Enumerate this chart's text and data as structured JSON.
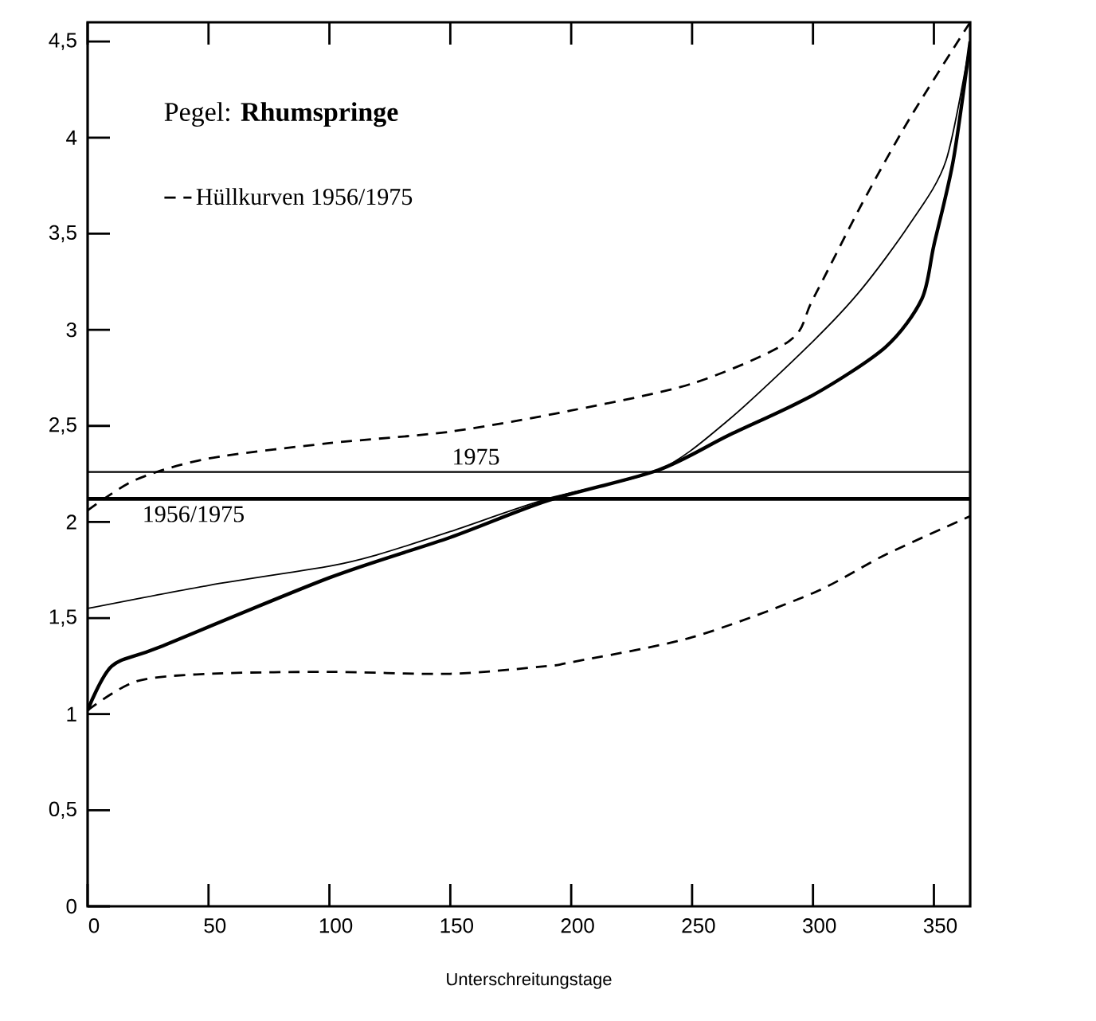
{
  "chart_data": {
    "type": "line",
    "title": "Pegel: **Rhumspringe**",
    "xlabel": "Unterschreitungstage",
    "xlim": [
      0,
      365
    ],
    "ylim": [
      0,
      4.6
    ],
    "xticks": [
      0,
      50,
      100,
      150,
      200,
      250,
      300,
      350
    ],
    "yticks": [
      0,
      {
        "value": 0.5,
        "label": "0,5"
      },
      1,
      {
        "value": 1.5,
        "label": "1,5"
      },
      2,
      {
        "value": 2.5,
        "label": "2,5"
      },
      3,
      {
        "value": 3.5,
        "label": "3,5"
      },
      4,
      {
        "value": 4.5,
        "label": "4,5"
      }
    ],
    "grid": false,
    "legend": "top left",
    "series": [
      {
        "name": "Hüllkurven 1956/1975",
        "color": "#000000",
        "line_style": "dashed",
        "x": [
          0,
          20,
          50,
          100,
          150,
          200,
          250,
          290,
          300,
          320,
          340,
          365
        ],
        "values": [
          2.06,
          2.22,
          2.33,
          2.41,
          2.47,
          2.58,
          2.72,
          2.94,
          3.16,
          3.65,
          4.1,
          4.6
        ]
      },
      {
        "color": "#000000",
        "line_style": "dashed",
        "x": [
          0,
          20,
          50,
          100,
          150,
          190,
          200,
          250,
          300,
          330,
          365
        ],
        "values": [
          1.02,
          1.17,
          1.21,
          1.22,
          1.21,
          1.25,
          1.27,
          1.4,
          1.63,
          1.83,
          2.03
        ]
      },
      {
        "color": "#000000",
        "line_style": "solid",
        "x": [
          0,
          50,
          100,
          120,
          150,
          190,
          236,
          265,
          300,
          320,
          340,
          355,
          365
        ],
        "values": [
          1.55,
          1.67,
          1.77,
          1.83,
          1.95,
          2.12,
          2.27,
          2.53,
          2.94,
          3.21,
          3.55,
          3.88,
          4.5
        ]
      },
      {
        "color": "#000000",
        "line_style": "solid",
        "x": [
          0,
          10,
          30,
          100,
          150,
          190,
          236,
          265,
          300,
          330,
          345,
          350,
          358,
          365
        ],
        "values": [
          1.02,
          1.25,
          1.35,
          1.71,
          1.92,
          2.11,
          2.27,
          2.45,
          2.66,
          2.91,
          3.16,
          3.44,
          3.88,
          4.5
        ]
      },
      {
        "name": "1975",
        "color": "#000000",
        "line_style": "solid",
        "x": [
          0,
          365
        ],
        "values": [
          2.26,
          2.26
        ]
      },
      {
        "name": "1956/1975",
        "color": "#000000",
        "line_style": "solid",
        "x": [
          0,
          365
        ],
        "values": [
          2.12,
          2.12
        ]
      }
    ]
  }
}
